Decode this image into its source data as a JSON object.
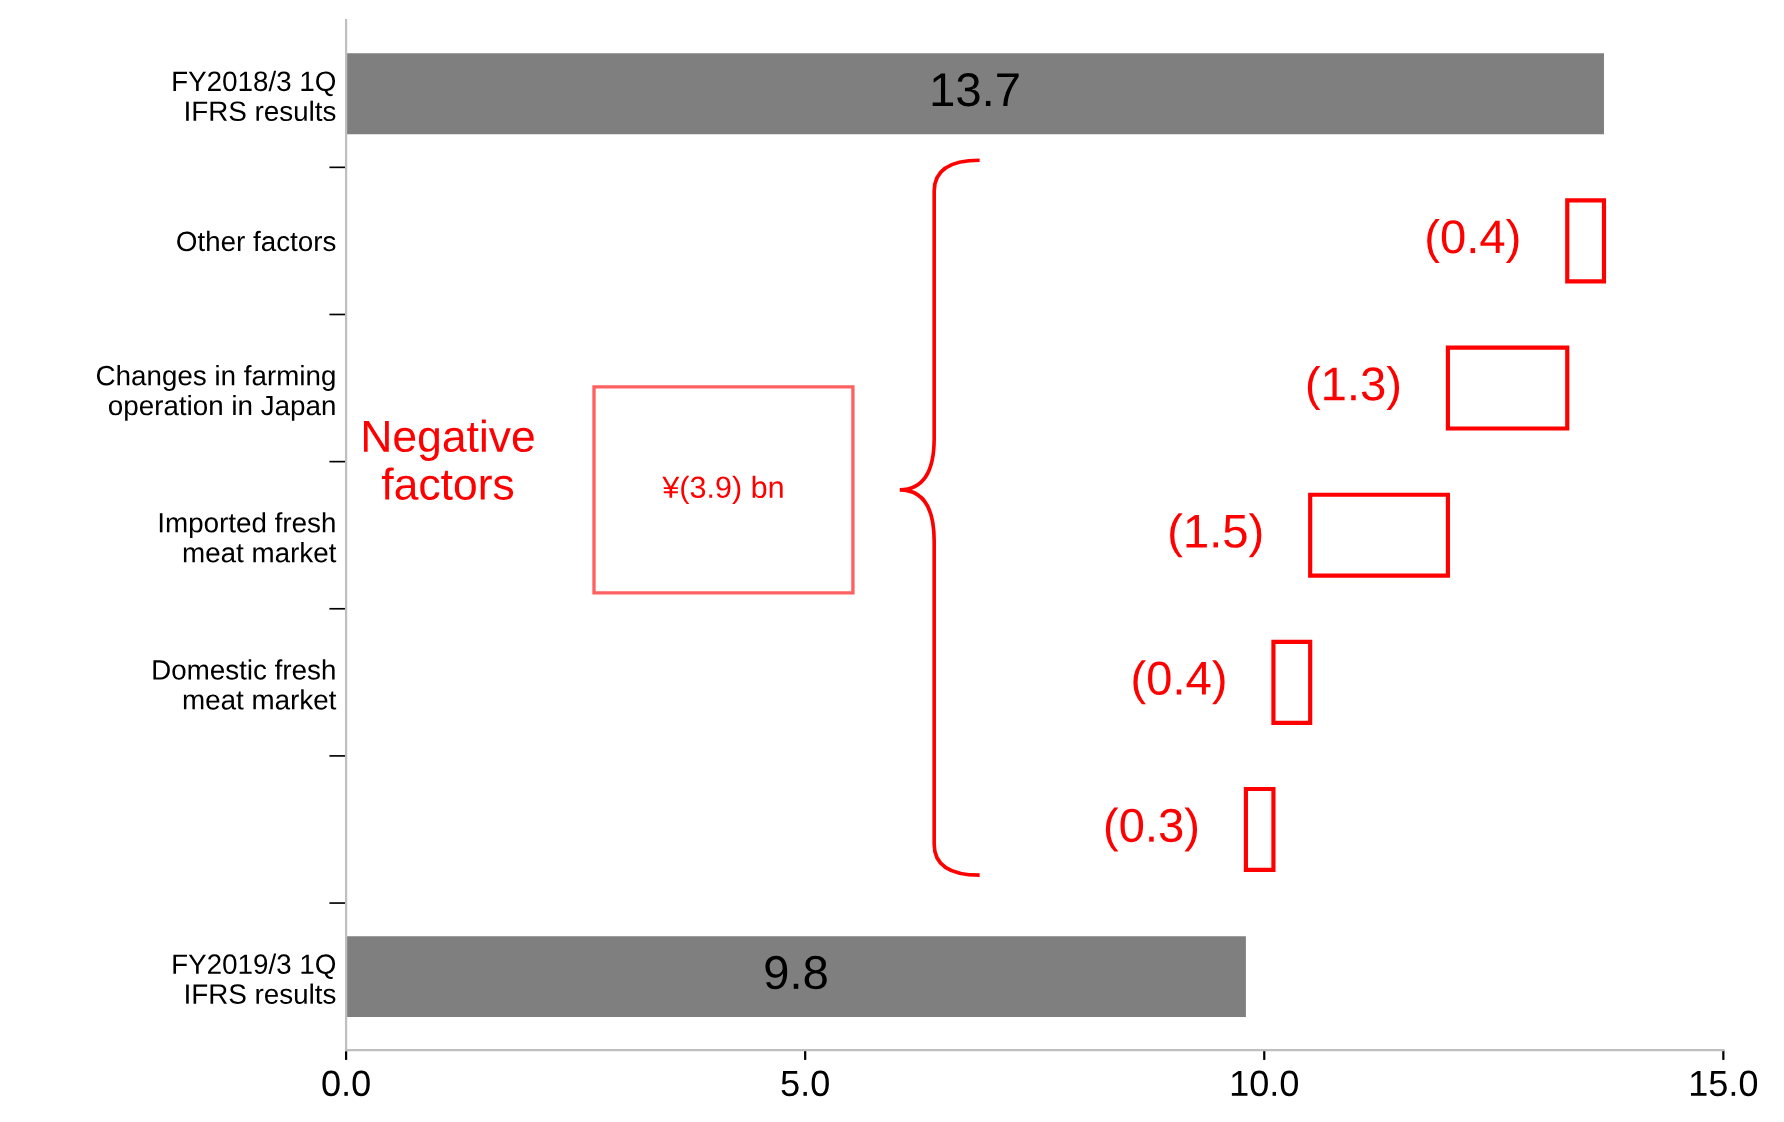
{
  "chart_data": {
    "type": "bar",
    "orientation": "horizontal",
    "categories": [
      "FY2018/3 1Q\nIFRS results",
      "Other factors",
      "Changes in farming\noperation in Japan",
      "Imported fresh\nmeat market",
      "Domestic fresh\nmeat market",
      null,
      "FY2019/3 1Q\nIFRS results"
    ],
    "values": [
      13.7,
      -0.4,
      -1.3,
      -1.5,
      -0.4,
      -0.3,
      9.8
    ],
    "base": [
      0,
      13.7,
      13.3,
      12.0,
      10.5,
      10.1,
      0
    ],
    "colors": [
      "#7f7f7f",
      "#ff0000",
      "#ff0000",
      "#ff0000",
      "#ff0000",
      "#ff0000",
      "#7f7f7f"
    ],
    "value_labels": [
      "13.7",
      "(0.4)",
      "(1.3)",
      "(1.5)",
      "(0.4)",
      "(0.3)",
      "9.8"
    ],
    "xlim": [
      0,
      15
    ],
    "xticks": [
      {
        "value": 0,
        "label": "0.0"
      },
      {
        "value": 5,
        "label": "5.0"
      },
      {
        "value": 10,
        "label": "10.0"
      },
      {
        "value": 15,
        "label": "15.0"
      }
    ],
    "annotations": [
      "Negative\nfactors",
      "¥(3.9) bn"
    ],
    "grid": false
  }
}
